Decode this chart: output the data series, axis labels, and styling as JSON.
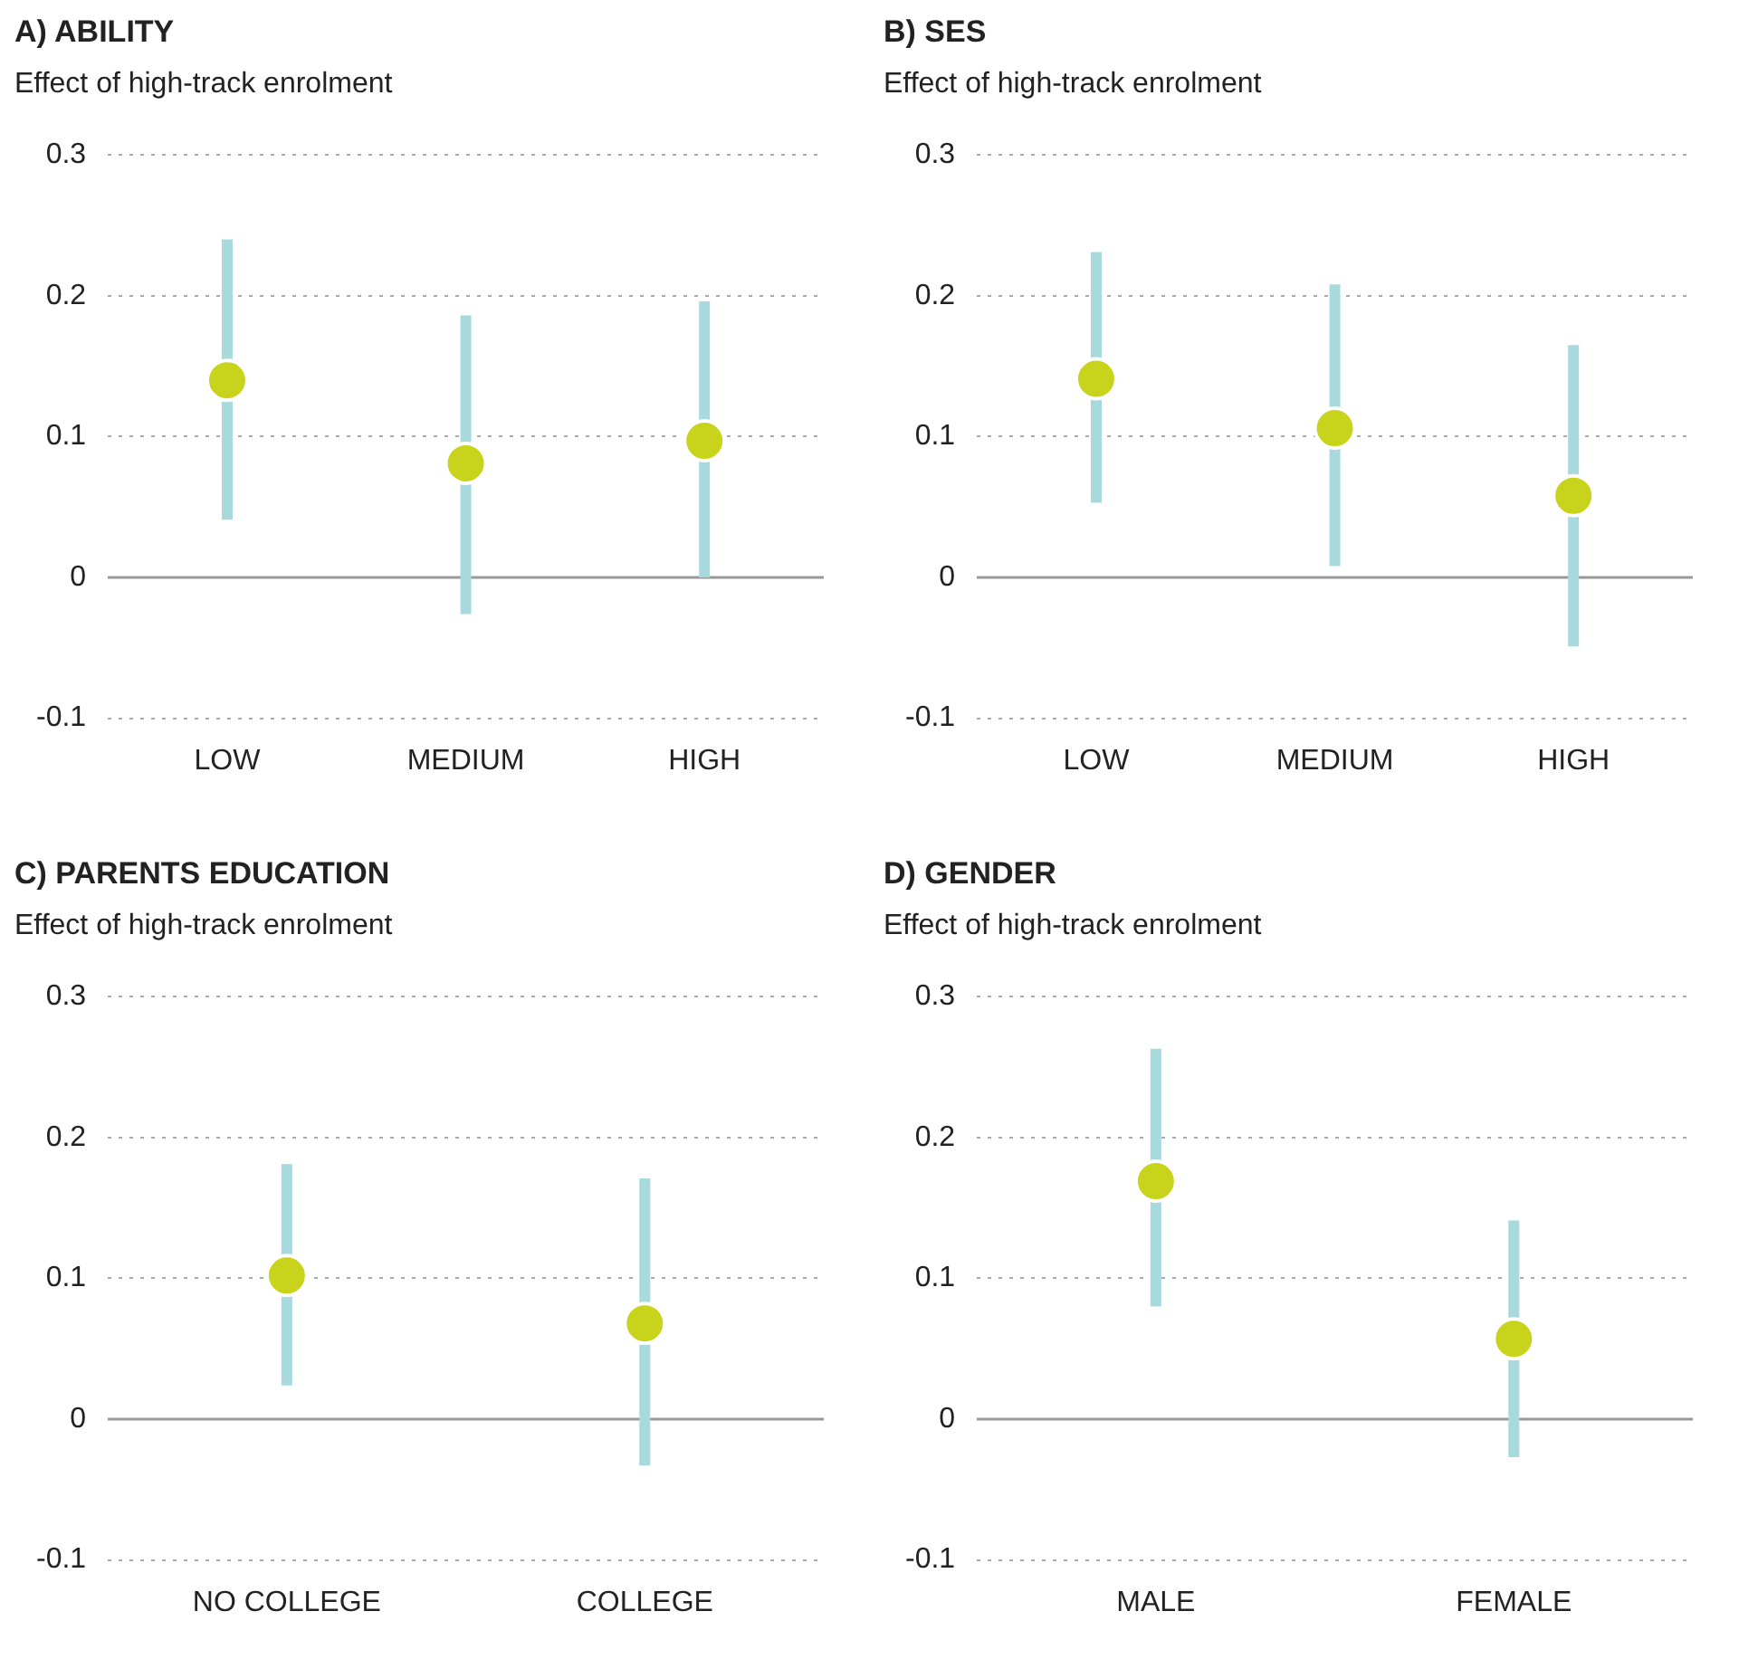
{
  "chart_data": [
    {
      "type": "scatter",
      "title": "A) ABILITY",
      "ylabel": "Effect of high-track enrolment",
      "categories": [
        "LOW",
        "MEDIUM",
        "HIGH"
      ],
      "series": [
        {
          "color": "#c8d41c",
          "values": [
            0.14,
            0.081,
            0.097
          ],
          "errors": [
            [
              0.041,
              0.24
            ],
            [
              -0.026,
              0.186
            ],
            [
              0.0,
              0.196
            ]
          ]
        }
      ],
      "ylim": [
        -0.1,
        0.3
      ],
      "yticks": [
        -0.1,
        0,
        0.1,
        0.2,
        0.3
      ],
      "grid": "y",
      "marker": "circle",
      "ref_lines": [
        {
          "axis": "y",
          "value": 0
        }
      ]
    },
    {
      "type": "scatter",
      "title": "B) SES",
      "ylabel": "Effect of high-track enrolment",
      "categories": [
        "LOW",
        "MEDIUM",
        "HIGH"
      ],
      "series": [
        {
          "color": "#c8d41c",
          "values": [
            0.141,
            0.106,
            0.058
          ],
          "errors": [
            [
              0.053,
              0.231
            ],
            [
              0.008,
              0.208
            ],
            [
              -0.049,
              0.165
            ]
          ]
        }
      ],
      "ylim": [
        -0.1,
        0.3
      ],
      "yticks": [
        -0.1,
        0,
        0.1,
        0.2,
        0.3
      ],
      "grid": "y",
      "marker": "circle",
      "ref_lines": [
        {
          "axis": "y",
          "value": 0
        }
      ]
    },
    {
      "type": "scatter",
      "title": "C) PARENTS EDUCATION",
      "ylabel": "Effect of high-track enrolment",
      "categories": [
        "NO COLLEGE",
        "COLLEGE"
      ],
      "series": [
        {
          "color": "#c8d41c",
          "values": [
            0.102,
            0.068
          ],
          "errors": [
            [
              0.024,
              0.181
            ],
            [
              -0.033,
              0.171
            ]
          ]
        }
      ],
      "ylim": [
        -0.1,
        0.3
      ],
      "yticks": [
        -0.1,
        0,
        0.1,
        0.2,
        0.3
      ],
      "grid": "y",
      "marker": "circle",
      "ref_lines": [
        {
          "axis": "y",
          "value": 0
        }
      ]
    },
    {
      "type": "scatter",
      "title": "D) GENDER",
      "ylabel": "Effect of high-track enrolment",
      "categories": [
        "MALE",
        "FEMALE"
      ],
      "series": [
        {
          "color": "#c8d41c",
          "values": [
            0.169,
            0.057
          ],
          "errors": [
            [
              0.08,
              0.263
            ],
            [
              -0.027,
              0.141
            ]
          ]
        }
      ],
      "ylim": [
        -0.1,
        0.3
      ],
      "yticks": [
        -0.1,
        0,
        0.1,
        0.2,
        0.3
      ],
      "grid": "y",
      "marker": "circle",
      "ref_lines": [
        {
          "axis": "y",
          "value": 0
        }
      ]
    }
  ]
}
